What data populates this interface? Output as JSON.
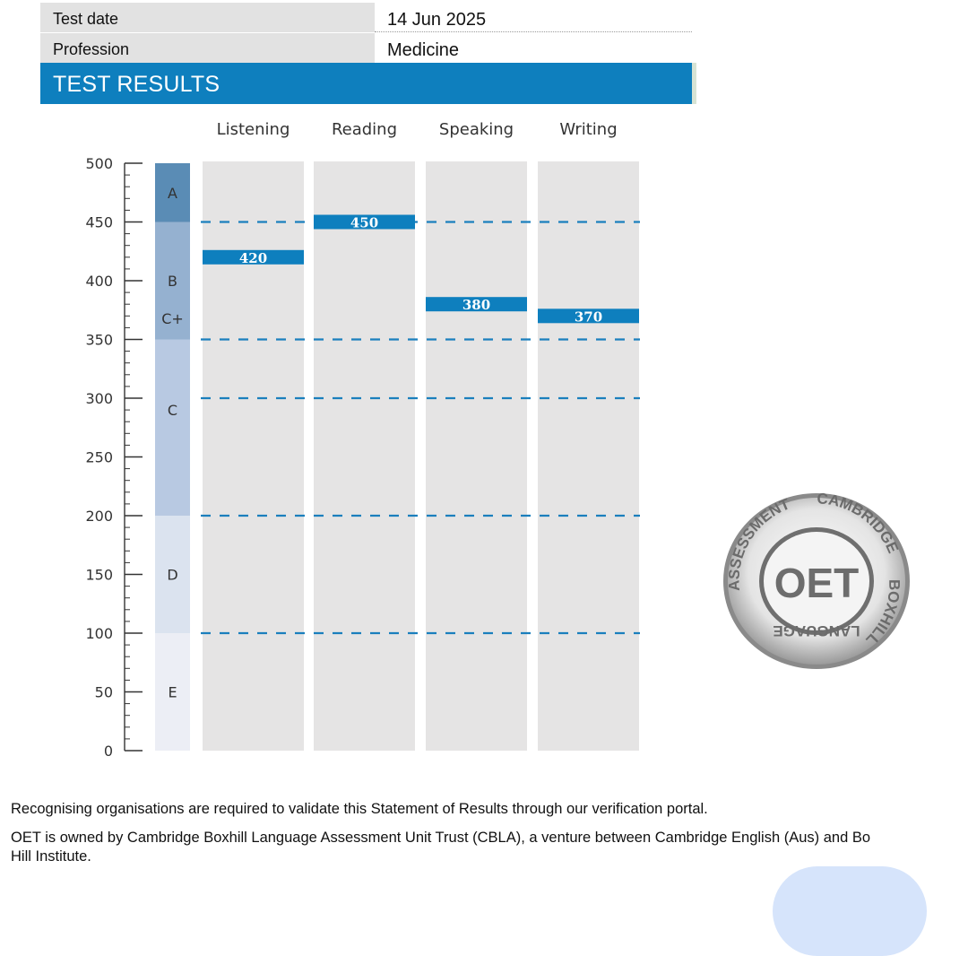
{
  "details": {
    "test_date_label": "Test date",
    "test_date_value": "14 Jun 2025",
    "profession_label": "Profession",
    "profession_value": "Medicine"
  },
  "section_title": "TEST RESULTS",
  "chart_data": {
    "type": "bar",
    "categories": [
      "Listening",
      "Reading",
      "Speaking",
      "Writing"
    ],
    "values": [
      420,
      450,
      380,
      370
    ],
    "value_labels": [
      "420",
      "450",
      "380",
      "370"
    ],
    "ylim": [
      0,
      500
    ],
    "yticks": [
      0,
      50,
      100,
      150,
      200,
      250,
      300,
      350,
      400,
      450,
      500
    ],
    "ytick_labels": [
      "0",
      "50",
      "100",
      "150",
      "200",
      "250",
      "300",
      "350",
      "400",
      "450",
      "500"
    ],
    "grade_bands": [
      {
        "grade": "A",
        "from": 450,
        "to": 500,
        "color": "#5a8cb5"
      },
      {
        "grade": "B",
        "from": 350,
        "to": 450,
        "color": "#95b1d0"
      },
      {
        "grade": "C+",
        "from": 300,
        "to": 350,
        "color": "#b8c9e2"
      },
      {
        "grade": "C",
        "from": 200,
        "to": 300,
        "color": "#b8c9e2"
      },
      {
        "grade": "D",
        "from": 100,
        "to": 200,
        "color": "#dbe3ef"
      },
      {
        "grade": "E",
        "from": 0,
        "to": 100,
        "color": "#eceef5"
      }
    ],
    "grade_label_values": [
      475,
      400,
      368,
      290,
      150,
      50
    ],
    "threshold_lines": [
      450,
      350,
      300,
      200,
      100
    ],
    "grid": false,
    "legend": "none",
    "colors": {
      "marker": "#0e7fbe",
      "column": "#e5e4e4",
      "dash": "#1b7fbd",
      "axis": "#333333"
    }
  },
  "seal": {
    "text_top_left": "ASSESSMENT",
    "text_top_right": "CAMBRIDGE",
    "text_right": "BOXHILL",
    "text_bottom": "LANGUAGE",
    "center": "OET"
  },
  "footer": {
    "line1": "Recognising organisations are required to validate this Statement of Results through our verification portal.",
    "line2": "OET is owned by Cambridge Boxhill Language Assessment Unit Trust (CBLA), a venture between Cambridge English (Aus) and Bo",
    "line3": "Hill Institute."
  }
}
